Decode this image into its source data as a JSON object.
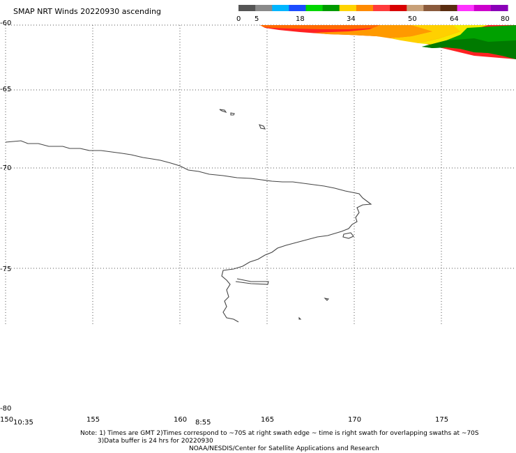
{
  "title": "SMAP NRT Winds 20220930 ascending",
  "colorbar": {
    "tick_labels": [
      "0",
      "5",
      "18",
      "34",
      "50",
      "64",
      "80"
    ],
    "colors": [
      "#555555",
      "#8a8a8a",
      "#00b6ff",
      "#1c4cff",
      "#00d700",
      "#009a00",
      "#ffd400",
      "#ff8a00",
      "#ff3b3b",
      "#d80000",
      "#c8a078",
      "#8a5a3c",
      "#5a2d10",
      "#ff33ff",
      "#cc00cc",
      "#8a00b8"
    ]
  },
  "axes": {
    "lat_labels": [
      "-60",
      "-65",
      "-70",
      "-75",
      "-80"
    ],
    "lon_labels": [
      "150",
      "155",
      "160",
      "165",
      "170",
      "175"
    ]
  },
  "swath_times": [
    "10:35",
    "8:55"
  ],
  "wind_swath": {
    "colors": [
      "#ff2222",
      "#ff6a00",
      "#ff9a00",
      "#ffd000",
      "#f6e800",
      "#00a000",
      "#007a00"
    ]
  },
  "notes": {
    "line1": "Note: 1) Times are GMT 2)Times correspond to ~70S at right swath edge ~ time is right swath for overlapping swaths at ~70S",
    "line2": "3)Data buffer is 24 hrs for 20220930",
    "line3": "NOAA/NESDIS/Center for Satellite Applications and Research"
  }
}
